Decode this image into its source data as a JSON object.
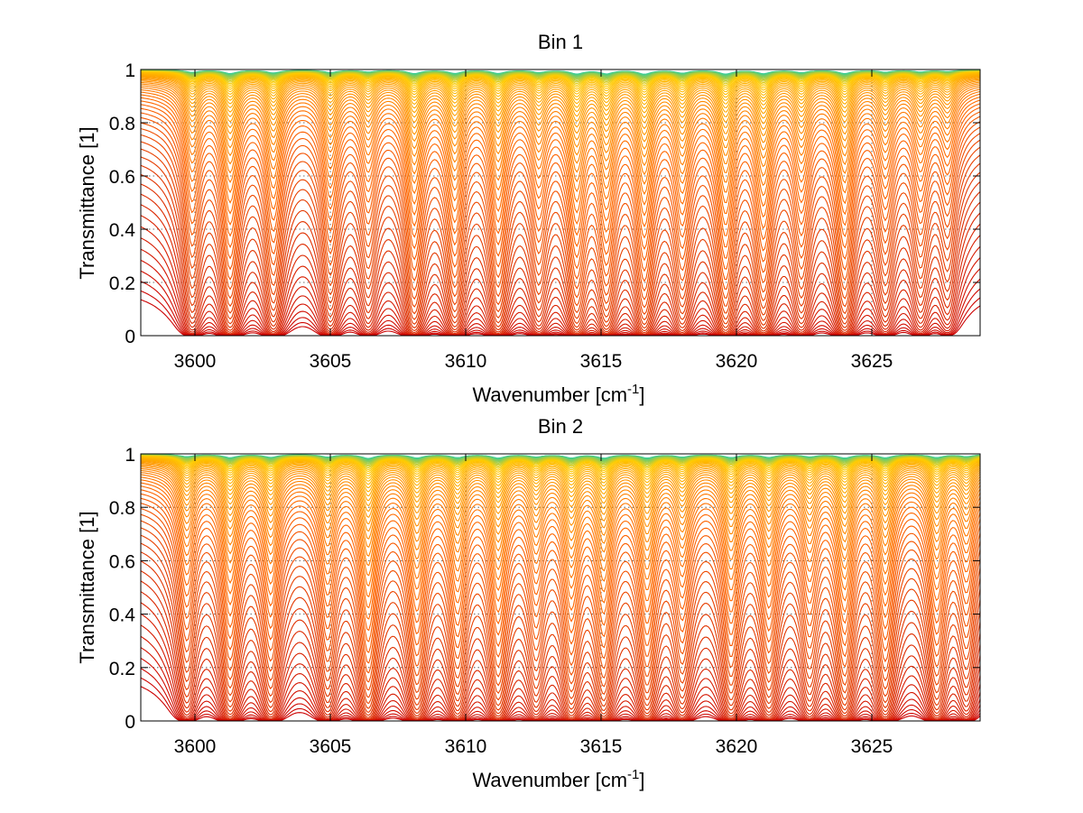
{
  "chart_data": [
    {
      "type": "line",
      "title": "Bin 1",
      "xlabel": "Wavenumber [cm",
      "xlabel_sup": "-1",
      "xlabel_tail": "]",
      "ylabel": "Transmittance [1]",
      "xlim": [
        3598,
        3629
      ],
      "ylim": [
        0,
        1
      ],
      "xticks": [
        3600,
        3605,
        3610,
        3615,
        3620,
        3625
      ],
      "xtick_labels": [
        "3600",
        "3605",
        "3610",
        "3615",
        "3620",
        "3625"
      ],
      "yticks": [
        0,
        0.2,
        0.4,
        0.6,
        0.8,
        1
      ],
      "ytick_labels": [
        "0",
        "0.2",
        "0.4",
        "0.6",
        "0.8",
        "1"
      ],
      "grid": true,
      "legend": "none",
      "series_count": 60,
      "colormap": [
        "#cc0000",
        "#e03300",
        "#ff6600",
        "#ff9900",
        "#ffcc00",
        "#33cc99"
      ],
      "absorption_lines": [
        {
          "x": 3599.9,
          "depth": 0.55
        },
        {
          "x": 3601.3,
          "depth": 0.85
        },
        {
          "x": 3602.9,
          "depth": 0.7
        },
        {
          "x": 3605.0,
          "depth": 0.6
        },
        {
          "x": 3606.4,
          "depth": 0.45
        },
        {
          "x": 3608.1,
          "depth": 0.85
        },
        {
          "x": 3609.6,
          "depth": 0.8
        },
        {
          "x": 3611.2,
          "depth": 0.8
        },
        {
          "x": 3612.7,
          "depth": 0.55
        },
        {
          "x": 3614.1,
          "depth": 0.9
        },
        {
          "x": 3615.2,
          "depth": 0.85
        },
        {
          "x": 3616.6,
          "depth": 0.95
        },
        {
          "x": 3618.0,
          "depth": 0.7
        },
        {
          "x": 3619.6,
          "depth": 0.95
        },
        {
          "x": 3621.0,
          "depth": 0.85
        },
        {
          "x": 3622.4,
          "depth": 0.6
        },
        {
          "x": 3624.0,
          "depth": 0.85
        },
        {
          "x": 3625.5,
          "depth": 0.5
        },
        {
          "x": 3626.8,
          "depth": 0.45
        },
        {
          "x": 3627.8,
          "depth": 0.35
        }
      ]
    },
    {
      "type": "line",
      "title": "Bin 2",
      "xlabel": "Wavenumber [cm",
      "xlabel_sup": "-1",
      "xlabel_tail": "]",
      "ylabel": "Transmittance [1]",
      "xlim": [
        3598,
        3629
      ],
      "ylim": [
        0,
        1
      ],
      "xticks": [
        3600,
        3605,
        3610,
        3615,
        3620,
        3625
      ],
      "xtick_labels": [
        "3600",
        "3605",
        "3610",
        "3615",
        "3620",
        "3625"
      ],
      "yticks": [
        0,
        0.2,
        0.4,
        0.6,
        0.8,
        1
      ],
      "ytick_labels": [
        "0",
        "0.2",
        "0.4",
        "0.6",
        "0.8",
        "1"
      ],
      "grid": true,
      "legend": "none",
      "series_count": 60,
      "colormap": [
        "#cc0000",
        "#e03300",
        "#ff6600",
        "#ff9900",
        "#ffcc00",
        "#33cc99"
      ],
      "absorption_lines": [
        {
          "x": 3599.7,
          "depth": 0.55
        },
        {
          "x": 3601.3,
          "depth": 0.8
        },
        {
          "x": 3602.8,
          "depth": 0.7
        },
        {
          "x": 3604.9,
          "depth": 0.6
        },
        {
          "x": 3606.4,
          "depth": 0.95
        },
        {
          "x": 3608.2,
          "depth": 0.85
        },
        {
          "x": 3609.7,
          "depth": 0.75
        },
        {
          "x": 3611.2,
          "depth": 0.85
        },
        {
          "x": 3612.6,
          "depth": 0.55
        },
        {
          "x": 3613.9,
          "depth": 0.8
        },
        {
          "x": 3615.1,
          "depth": 0.85
        },
        {
          "x": 3616.7,
          "depth": 0.85
        },
        {
          "x": 3618.0,
          "depth": 0.6
        },
        {
          "x": 3619.8,
          "depth": 0.75
        },
        {
          "x": 3621.2,
          "depth": 0.7
        },
        {
          "x": 3622.7,
          "depth": 0.55
        },
        {
          "x": 3624.0,
          "depth": 0.85
        },
        {
          "x": 3625.5,
          "depth": 0.8
        },
        {
          "x": 3627.4,
          "depth": 0.75
        },
        {
          "x": 3628.5,
          "depth": 0.5
        }
      ]
    }
  ]
}
